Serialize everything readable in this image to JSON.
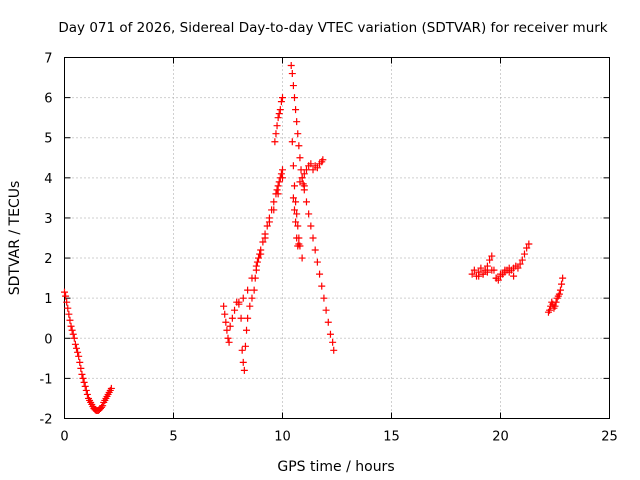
{
  "chart_data": {
    "type": "scatter",
    "title": "Day 071 of 2026, Sidereal Day-to-day VTEC variation (SDTVAR) for receiver murk",
    "xlabel": "GPS time / hours",
    "ylabel": "SDTVAR / TECUs",
    "xlim": [
      0,
      25
    ],
    "ylim": [
      -2,
      7
    ],
    "x_ticks": [
      0,
      5,
      10,
      15,
      20,
      25
    ],
    "x_tick_labels": [
      "0",
      "5",
      "10",
      "15",
      "20",
      "25"
    ],
    "y_ticks": [
      -2,
      -1,
      0,
      1,
      2,
      3,
      4,
      5,
      6,
      7
    ],
    "y_tick_labels": [
      "-2",
      "-1",
      "0",
      "1",
      "2",
      "3",
      "4",
      "5",
      "6",
      "7"
    ],
    "grid": true,
    "marker": "plus",
    "color": "#ff0000",
    "series": [
      {
        "name": "SDTVAR",
        "x": [
          0.0,
          0.05,
          0.1,
          0.15,
          0.2,
          0.25,
          0.3,
          0.35,
          0.4,
          0.45,
          0.5,
          0.55,
          0.6,
          0.65,
          0.7,
          0.75,
          0.8,
          0.85,
          0.9,
          0.95,
          1.0,
          1.05,
          1.1,
          1.15,
          1.2,
          1.25,
          1.3,
          1.35,
          1.4,
          1.45,
          1.5,
          1.55,
          1.6,
          1.65,
          1.7,
          1.75,
          1.8,
          1.85,
          1.9,
          1.95,
          2.0,
          2.05,
          2.1,
          2.15,
          7.3,
          7.35,
          7.4,
          7.45,
          7.5,
          7.55,
          7.6,
          7.7,
          7.8,
          7.9,
          8.0,
          8.1,
          8.15,
          8.2,
          8.25,
          8.3,
          8.35,
          8.4,
          8.5,
          8.6,
          8.7,
          8.75,
          8.8,
          8.85,
          8.9,
          8.95,
          9.0,
          9.1,
          9.2,
          9.3,
          9.4,
          9.5,
          9.6,
          9.7,
          9.75,
          9.8,
          9.85,
          9.9,
          9.95,
          10.0,
          8.0,
          8.2,
          8.4,
          8.6,
          8.8,
          9.0,
          9.2,
          9.4,
          9.6,
          9.8,
          10.0,
          9.65,
          9.7,
          9.75,
          9.8,
          9.85,
          9.9,
          9.95,
          10.0,
          10.4,
          10.45,
          10.5,
          10.55,
          10.6,
          10.65,
          10.7,
          10.75,
          10.8,
          10.85,
          10.9,
          10.95,
          11.0,
          10.45,
          10.5,
          10.55,
          10.6,
          10.65,
          10.7,
          10.75,
          10.8,
          10.9,
          11.0,
          11.1,
          11.2,
          11.3,
          11.4,
          11.5,
          11.6,
          11.7,
          11.8,
          11.9,
          12.0,
          12.1,
          12.2,
          12.3,
          12.35,
          10.8,
          10.9,
          11.0,
          11.1,
          11.2,
          11.3,
          11.4,
          11.5,
          11.6,
          11.7,
          11.8,
          11.85,
          10.5,
          10.55,
          10.6,
          10.65,
          10.7,
          10.75,
          18.7,
          18.8,
          18.9,
          19.0,
          19.1,
          19.2,
          19.3,
          19.4,
          19.5,
          19.6,
          19.7,
          19.8,
          19.9,
          20.0,
          20.1,
          20.2,
          20.3,
          20.4,
          20.5,
          20.6,
          20.7,
          20.8,
          20.9,
          21.0,
          21.1,
          21.2,
          21.3,
          19.0,
          19.2,
          19.4,
          19.6,
          19.8,
          20.0,
          20.2,
          20.4,
          20.6,
          22.2,
          22.25,
          22.3,
          22.35,
          22.4,
          22.45,
          22.5,
          22.55,
          22.6,
          22.65,
          22.7,
          22.75,
          22.8,
          22.85
        ],
        "y": [
          1.15,
          1.05,
          0.9,
          0.75,
          0.6,
          0.45,
          0.3,
          0.2,
          0.1,
          0.0,
          -0.15,
          -0.25,
          -0.35,
          -0.45,
          -0.6,
          -0.75,
          -0.9,
          -1.0,
          -1.1,
          -1.2,
          -1.3,
          -1.4,
          -1.5,
          -1.55,
          -1.6,
          -1.65,
          -1.7,
          -1.75,
          -1.78,
          -1.8,
          -1.8,
          -1.8,
          -1.78,
          -1.75,
          -1.72,
          -1.68,
          -1.6,
          -1.55,
          -1.5,
          -1.45,
          -1.4,
          -1.35,
          -1.3,
          -1.25,
          0.8,
          0.6,
          0.4,
          0.2,
          0.0,
          -0.1,
          0.3,
          0.5,
          0.7,
          0.9,
          0.85,
          0.5,
          -0.3,
          -0.6,
          -0.8,
          -0.2,
          0.2,
          0.5,
          0.8,
          1.0,
          1.2,
          1.5,
          1.7,
          1.9,
          2.0,
          2.1,
          2.2,
          2.4,
          2.6,
          2.8,
          3.0,
          3.2,
          3.4,
          3.6,
          3.7,
          3.8,
          3.9,
          4.0,
          4.1,
          4.2,
          0.9,
          1.0,
          1.2,
          1.5,
          1.8,
          2.1,
          2.5,
          2.9,
          3.2,
          3.6,
          4.0,
          4.9,
          5.1,
          5.3,
          5.5,
          5.6,
          5.7,
          5.9,
          6.0,
          6.8,
          6.6,
          6.3,
          6.0,
          5.7,
          5.4,
          5.1,
          4.8,
          4.5,
          4.2,
          4.0,
          3.85,
          3.8,
          4.9,
          4.3,
          3.8,
          3.4,
          3.1,
          2.8,
          2.5,
          2.3,
          2.0,
          3.7,
          3.4,
          3.1,
          2.8,
          2.5,
          2.2,
          1.9,
          1.6,
          1.3,
          1.0,
          0.7,
          0.4,
          0.1,
          -0.1,
          -0.3,
          3.9,
          4.0,
          4.1,
          4.2,
          4.3,
          4.35,
          4.2,
          4.3,
          4.25,
          4.35,
          4.4,
          4.45,
          3.5,
          3.2,
          2.9,
          2.5,
          2.3,
          2.35,
          1.6,
          1.7,
          1.55,
          1.65,
          1.75,
          1.6,
          1.7,
          1.8,
          1.95,
          2.05,
          1.7,
          1.5,
          1.45,
          1.55,
          1.6,
          1.65,
          1.7,
          1.75,
          1.7,
          1.75,
          1.8,
          1.75,
          1.85,
          1.95,
          2.1,
          2.25,
          2.35,
          1.55,
          1.6,
          1.65,
          1.7,
          1.5,
          1.6,
          1.7,
          1.65,
          1.55,
          0.65,
          0.7,
          0.8,
          0.9,
          0.85,
          0.75,
          0.8,
          0.9,
          1.0,
          1.05,
          1.1,
          1.2,
          1.35,
          1.5
        ]
      }
    ]
  }
}
